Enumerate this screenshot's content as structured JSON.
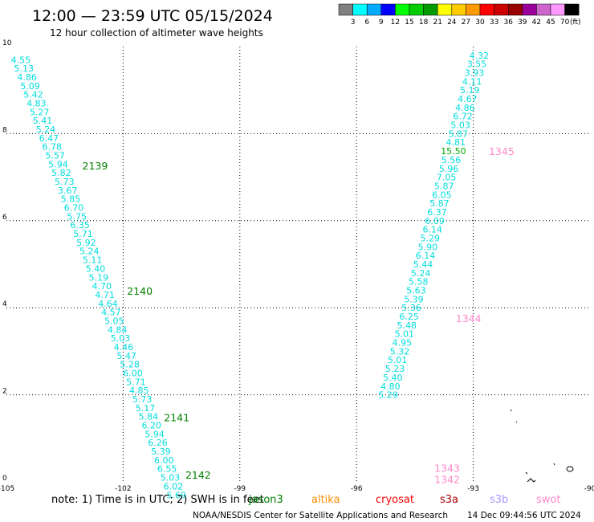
{
  "header": {
    "title": "12:00 — 23:59 UTC 05/15/2024",
    "subtitle": "12 hour collection of altimeter wave heights"
  },
  "colorbar": {
    "labels": [
      "3",
      "6",
      "9",
      "12",
      "15",
      "18",
      "21",
      "24",
      "27",
      "30",
      "33",
      "36",
      "39",
      "42",
      "45",
      "70"
    ],
    "unit": "(ft)",
    "colors": [
      "#808080",
      "#00ffff",
      "#00aaff",
      "#0000ff",
      "#00ff00",
      "#00cc00",
      "#009900",
      "#ffff00",
      "#ffcc00",
      "#ff9900",
      "#ff0000",
      "#cc0000",
      "#990000",
      "#990099",
      "#cc66cc",
      "#ff99ff",
      "#000000"
    ]
  },
  "footer": {
    "note": "note:  1) Time is in UTC; 2) SWH is in feet",
    "satellites": [
      {
        "name": "jason3",
        "color": "#008000"
      },
      {
        "name": "altika",
        "color": "#ff8c00"
      },
      {
        "name": "cryosat",
        "color": "#ff0000"
      },
      {
        "name": "s3a",
        "color": "#aa0000"
      },
      {
        "name": "s3b",
        "color": "#aa99ff"
      },
      {
        "name": "swot",
        "color": "#ff88cc"
      }
    ],
    "credit": "NOAA/NESDIS Center for Satellite Applications and Research",
    "timestamp": "14 Dec 09:44:56 UTC 2024"
  },
  "chart_data": {
    "type": "scatter",
    "xlim": [
      -105,
      -90
    ],
    "ylim": [
      0,
      10
    ],
    "x_ticks": [
      "-105",
      "-102",
      "-99",
      "-96",
      "-93",
      "-90"
    ],
    "y_ticks": [
      "0",
      "2",
      "4",
      "6",
      "8",
      "10"
    ],
    "grid": true,
    "series": [
      {
        "name": "jason3",
        "label_color": "#00dddd",
        "pass_color": "#008000",
        "points": [
          [
            -104.63,
            9.7,
            "4.55"
          ],
          [
            -104.55,
            9.5,
            "5.13"
          ],
          [
            -104.47,
            9.3,
            "4.86"
          ],
          [
            -104.39,
            9.1,
            "5.09"
          ],
          [
            -104.31,
            8.9,
            "5.42"
          ],
          [
            -104.23,
            8.7,
            "4.83"
          ],
          [
            -104.15,
            8.5,
            "5.27"
          ],
          [
            -104.07,
            8.3,
            "5.41"
          ],
          [
            -103.99,
            8.1,
            "5.24"
          ],
          [
            -103.91,
            7.9,
            "6.47"
          ],
          [
            -103.83,
            7.7,
            "6.78"
          ],
          [
            -103.75,
            7.5,
            "5.57"
          ],
          [
            -103.67,
            7.3,
            "5.94"
          ],
          [
            -103.59,
            7.1,
            "5.82"
          ],
          [
            -103.51,
            6.9,
            "5.73"
          ],
          [
            -103.43,
            6.7,
            "3.67"
          ],
          [
            -103.35,
            6.5,
            "5.85"
          ],
          [
            -103.27,
            6.3,
            "6.70"
          ],
          [
            -103.19,
            6.1,
            "5.75"
          ],
          [
            -103.11,
            5.9,
            "6.35"
          ],
          [
            -103.03,
            5.7,
            "5.71"
          ],
          [
            -102.95,
            5.5,
            "5.92"
          ],
          [
            -102.87,
            5.3,
            "5.24"
          ],
          [
            -102.79,
            5.1,
            "5.11"
          ],
          [
            -102.71,
            4.9,
            "5.40"
          ],
          [
            -102.63,
            4.7,
            "5.19"
          ],
          [
            -102.55,
            4.5,
            "4.70"
          ],
          [
            -102.47,
            4.3,
            "4.71"
          ],
          [
            -102.39,
            4.1,
            "4.64"
          ],
          [
            -102.31,
            3.9,
            "4.57"
          ],
          [
            -102.23,
            3.7,
            "5.05"
          ],
          [
            -102.15,
            3.5,
            "4.84"
          ],
          [
            -102.07,
            3.3,
            "5.03"
          ],
          [
            -101.99,
            3.1,
            "4.46"
          ],
          [
            -101.91,
            2.9,
            "5.47"
          ],
          [
            -101.83,
            2.7,
            "5.28"
          ],
          [
            -101.75,
            2.5,
            "6.00"
          ],
          [
            -101.67,
            2.3,
            "5.71"
          ],
          [
            -101.59,
            2.1,
            "4.85"
          ],
          [
            -101.51,
            1.9,
            "5.73"
          ],
          [
            -101.43,
            1.7,
            "5.17"
          ],
          [
            -101.35,
            1.5,
            "5.84"
          ],
          [
            -101.27,
            1.3,
            "6.20"
          ],
          [
            -101.19,
            1.1,
            "5.94"
          ],
          [
            -101.11,
            0.9,
            "6.26"
          ],
          [
            -101.03,
            0.7,
            "5.39"
          ],
          [
            -100.95,
            0.5,
            "6.00"
          ],
          [
            -100.87,
            0.3,
            "6.55"
          ],
          [
            -100.79,
            0.1,
            "5.03"
          ],
          [
            -100.71,
            -0.1,
            "6.02"
          ],
          [
            -100.63,
            -0.3,
            "5.69"
          ]
        ],
        "passes": [
          {
            "label": "2139",
            "x": -103.05,
            "y": 7.25
          },
          {
            "label": "2140",
            "x": -101.9,
            "y": 4.37
          },
          {
            "label": "2141",
            "x": -100.95,
            "y": 1.47
          },
          {
            "label": "2142",
            "x": -100.4,
            "y": 0.15
          }
        ]
      },
      {
        "name": "jason3",
        "label_color": "#00dddd",
        "pass_color": "#008000",
        "points": [
          [
            -92.85,
            9.8,
            "4.32"
          ],
          [
            -92.91,
            9.6,
            "3.55"
          ],
          [
            -92.97,
            9.4,
            "3.93"
          ],
          [
            -93.03,
            9.2,
            "4.11"
          ],
          [
            -93.09,
            9.0,
            "5.19"
          ],
          [
            -93.15,
            8.8,
            "4.67"
          ],
          [
            -93.21,
            8.6,
            "4.86"
          ],
          [
            -93.27,
            8.4,
            "6.72"
          ],
          [
            -93.33,
            8.2,
            "5.03"
          ],
          [
            -93.39,
            8.0,
            "5.87"
          ],
          [
            -93.45,
            7.8,
            "4.81"
          ],
          [
            -93.51,
            7.6,
            "15.50"
          ],
          [
            -93.57,
            7.4,
            "5.56"
          ],
          [
            -93.63,
            7.2,
            "5.96"
          ],
          [
            -93.69,
            7.0,
            "7.05"
          ],
          [
            -93.75,
            6.8,
            "5.87"
          ],
          [
            -93.81,
            6.6,
            "6.05"
          ],
          [
            -93.87,
            6.4,
            "5.87"
          ],
          [
            -93.93,
            6.2,
            "6.37"
          ],
          [
            -93.99,
            6.0,
            "6.09"
          ],
          [
            -94.05,
            5.8,
            "6.14"
          ],
          [
            -94.11,
            5.6,
            "5.29"
          ],
          [
            -94.17,
            5.4,
            "5.90"
          ],
          [
            -94.23,
            5.2,
            "6.14"
          ],
          [
            -94.29,
            5.0,
            "5.44"
          ],
          [
            -94.35,
            4.8,
            "5.24"
          ],
          [
            -94.41,
            4.6,
            "5.58"
          ],
          [
            -94.47,
            4.4,
            "5.63"
          ],
          [
            -94.53,
            4.2,
            "5.39"
          ],
          [
            -94.59,
            4.0,
            "5.36"
          ],
          [
            -94.65,
            3.8,
            "6.25"
          ],
          [
            -94.71,
            3.6,
            "5.48"
          ],
          [
            -94.77,
            3.4,
            "5.01"
          ],
          [
            -94.83,
            3.2,
            "4.95"
          ],
          [
            -94.89,
            3.0,
            "5.32"
          ],
          [
            -94.95,
            2.8,
            "5.01"
          ],
          [
            -95.01,
            2.6,
            "5.23"
          ],
          [
            -95.07,
            2.4,
            "5.40"
          ],
          [
            -95.13,
            2.2,
            "4.80"
          ],
          [
            -95.19,
            2.0,
            "5.29"
          ]
        ],
        "passes": []
      },
      {
        "name": "swot",
        "label_color": "#ff88cc",
        "pass_color": "#ff88cc",
        "points": [],
        "passes": [
          {
            "label": "1345",
            "x": -92.6,
            "y": 7.58
          },
          {
            "label": "1344",
            "x": -93.45,
            "y": 3.75
          },
          {
            "label": "1343",
            "x": -94.0,
            "y": 0.3
          },
          {
            "label": "1342",
            "x": -94.0,
            "y": 0.05
          }
        ]
      }
    ]
  }
}
